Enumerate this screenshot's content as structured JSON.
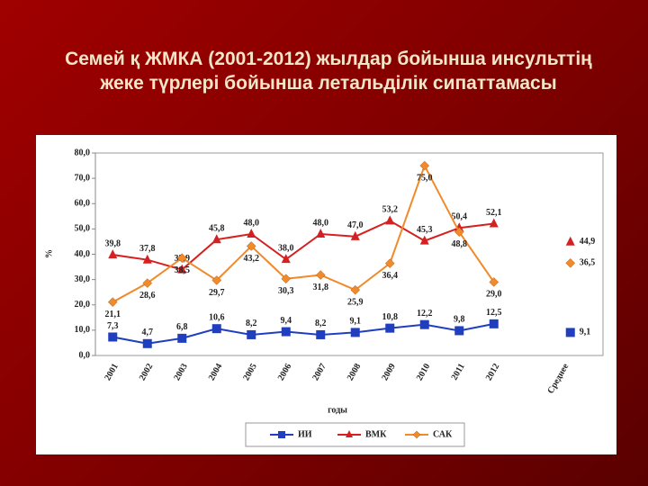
{
  "chart_data": {
    "type": "line",
    "title": "Семей қ ЖМКА (2001-2012) жылдар бойынша инсульттің жеке түрлері бойынша летальділік сипаттамасы",
    "y_label": "%",
    "x_label": "годы",
    "categories": [
      "2001",
      "2002",
      "2003",
      "2004",
      "2005",
      "2006",
      "2007",
      "2008",
      "2009",
      "2010",
      "2011",
      "2012",
      null,
      "Среднее"
    ],
    "series": [
      {
        "name": "ИИ",
        "color": "#1f3fbf",
        "marker": "square",
        "values": [
          7.3,
          4.7,
          6.8,
          10.6,
          8.2,
          9.4,
          8.2,
          9.1,
          10.8,
          12.2,
          9.8,
          12.5,
          null,
          9.1
        ],
        "value_labels": [
          "7,3",
          "4,7",
          "6,8",
          "10,6",
          "8,2",
          "9,4",
          "8,2",
          "9,1",
          "10,8",
          "12,2",
          "9,8",
          "12,5",
          null,
          "9,1"
        ]
      },
      {
        "name": "ВМК",
        "color": "#d42020",
        "marker": "triangle",
        "values": [
          39.8,
          37.8,
          33.9,
          45.8,
          48.0,
          38.0,
          48.0,
          47.0,
          53.2,
          45.3,
          50.4,
          52.1,
          null,
          44.9
        ],
        "value_labels": [
          "39,8",
          "37,8",
          "33,9",
          "45,8",
          "48,0",
          "38,0",
          "48,0",
          "47,0",
          "53,2",
          "45,3",
          "50,4",
          "52,1",
          null,
          "44,9"
        ]
      },
      {
        "name": "САК",
        "color": "#f08a2a",
        "marker": "diamond",
        "values": [
          21.1,
          28.6,
          38.5,
          29.7,
          43.2,
          30.3,
          31.8,
          25.9,
          36.4,
          75.0,
          48.8,
          29.0,
          null,
          36.5
        ],
        "value_labels": [
          "21,1",
          "28,6",
          "38,5",
          "29,7",
          "43,2",
          "30,3",
          "31,8",
          "25,9",
          "36,4",
          "75,0",
          "48,8",
          "29,0",
          null,
          "36,5"
        ]
      }
    ],
    "ylim": [
      0,
      80
    ],
    "yticks": [
      {
        "value": 0,
        "label": "0,0"
      },
      {
        "value": 10,
        "label": "10,0"
      },
      {
        "value": 20,
        "label": "20,0"
      },
      {
        "value": 30,
        "label": "30,0"
      },
      {
        "value": 40,
        "label": "40,0"
      },
      {
        "value": 50,
        "label": "50,0"
      },
      {
        "value": 60,
        "label": "60,0"
      },
      {
        "value": 70,
        "label": "70,0"
      },
      {
        "value": 80,
        "label": "80,0"
      }
    ],
    "grid": false
  }
}
